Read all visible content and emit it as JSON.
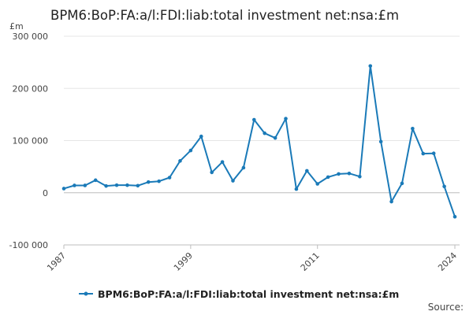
{
  "chart_data": {
    "type": "line",
    "title": "BPM6:BoP:FA:a/l:FDI:liab:total investment net:nsa:£m",
    "unit_label": "£m",
    "xlabel": "",
    "ylabel": "",
    "x": [
      1987,
      1988,
      1989,
      1990,
      1991,
      1992,
      1993,
      1994,
      1995,
      1996,
      1997,
      1998,
      1999,
      2000,
      2001,
      2002,
      2003,
      2004,
      2005,
      2006,
      2007,
      2008,
      2009,
      2010,
      2011,
      2012,
      2013,
      2014,
      2015,
      2016,
      2017,
      2018,
      2019,
      2020,
      2021,
      2022,
      2023,
      2024
    ],
    "xlim": [
      1987,
      2024
    ],
    "x_ticks": [
      1987,
      1999,
      2011,
      2024
    ],
    "ylim": [
      -100000,
      300000
    ],
    "y_ticks": [
      -100000,
      0,
      100000,
      200000,
      300000
    ],
    "y_tick_labels": [
      "-100 000",
      "0",
      "100 000",
      "200 000",
      "300 000"
    ],
    "grid": true,
    "legend_position": "bottom",
    "series": [
      {
        "name": "BPM6:BoP:FA:a/l:FDI:liab:total investment net:nsa:£m",
        "color": "#1a7ab8",
        "values": [
          8000,
          14000,
          14000,
          24000,
          13000,
          14500,
          14500,
          13500,
          20500,
          22000,
          29000,
          61000,
          81000,
          108000,
          39000,
          59000,
          23000,
          48000,
          140000,
          114000,
          105000,
          142000,
          7000,
          42000,
          17000,
          30000,
          36000,
          37000,
          31000,
          243000,
          98000,
          -17000,
          18000,
          123000,
          75000,
          75500,
          12000,
          -46000
        ]
      }
    ],
    "source_label": "Source:"
  }
}
